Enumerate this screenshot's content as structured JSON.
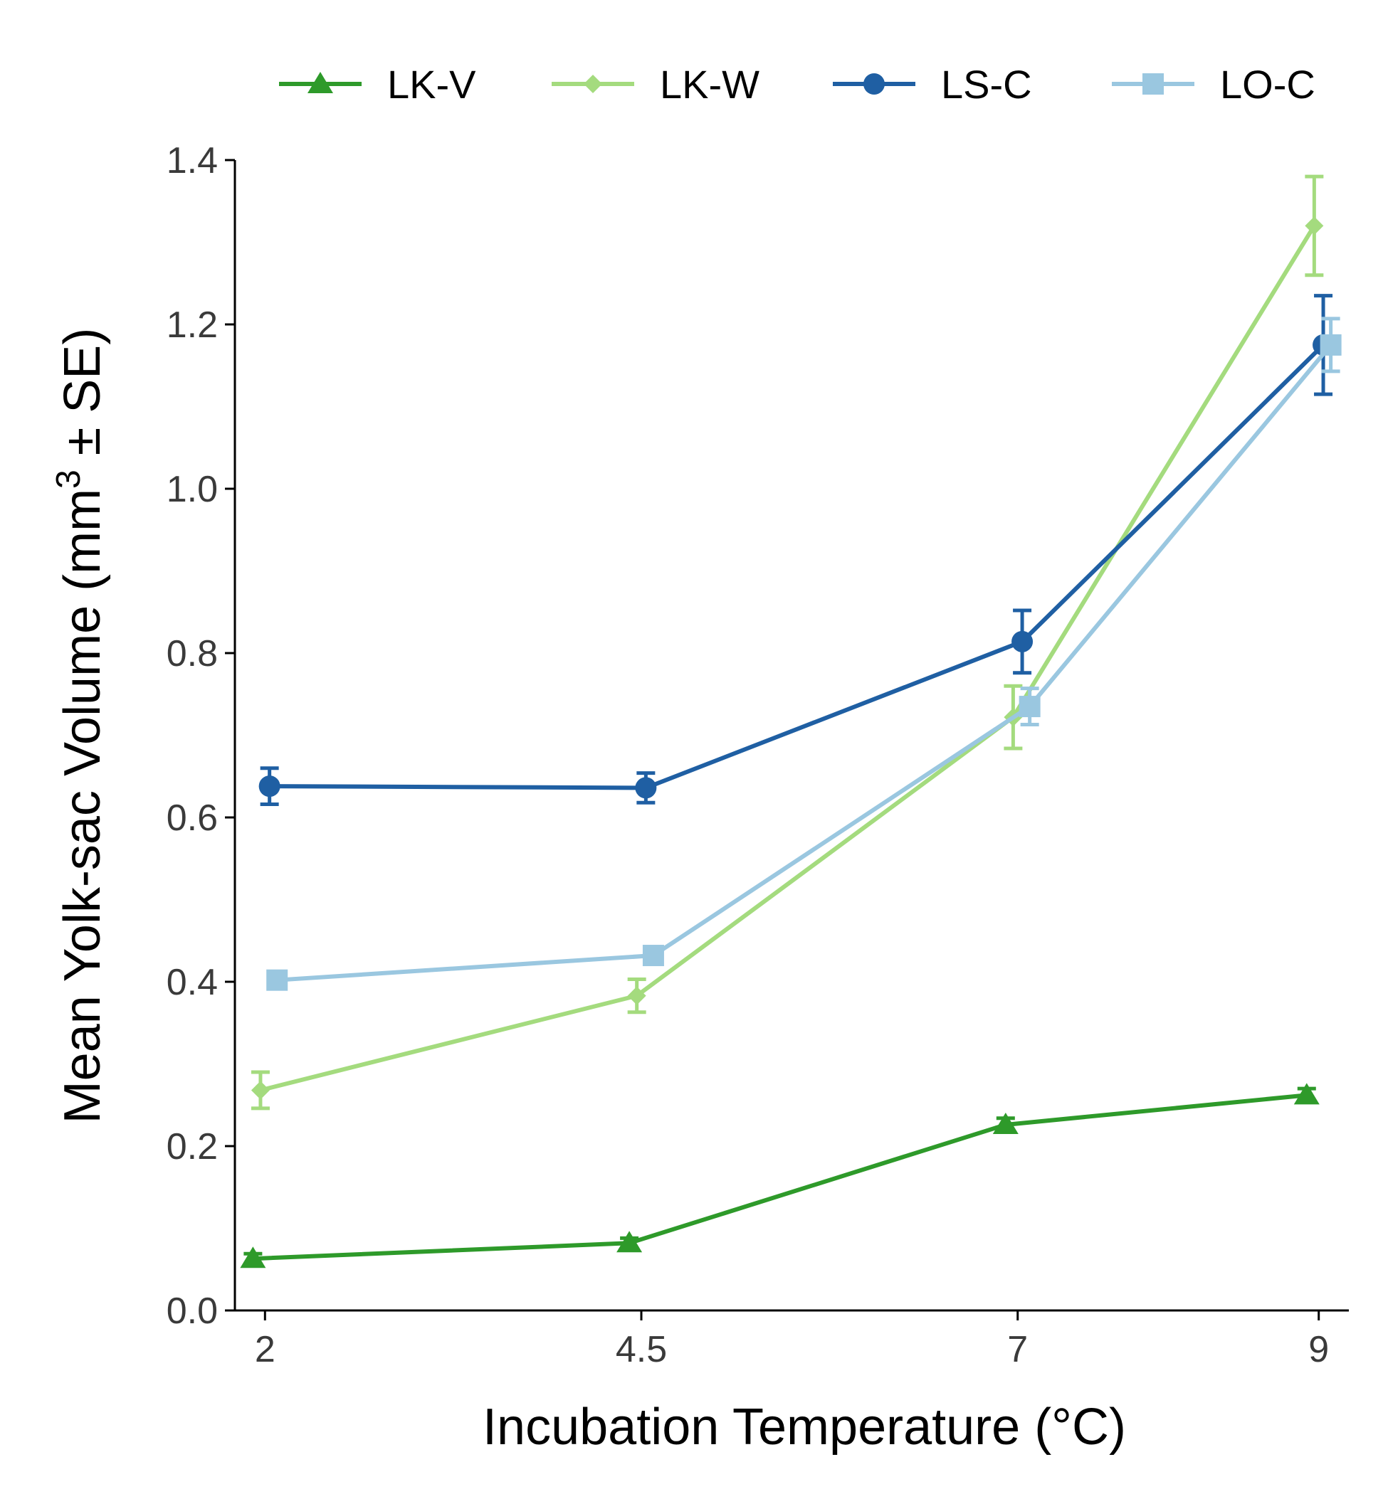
{
  "chart_data": {
    "type": "line",
    "xlabel": "Incubation Temperature (°C)",
    "ylabel": {
      "prefix": "Mean Yolk-sac Volume (mm",
      "superscript": "3",
      "suffix": " ± SE)"
    },
    "x": [
      2,
      4.5,
      7,
      9
    ],
    "x_tick_labels": [
      "2",
      "4.5",
      "7",
      "9"
    ],
    "xlim": [
      1.8,
      9.2
    ],
    "ylim": [
      0,
      1.4
    ],
    "y_ticks": [
      0.0,
      0.2,
      0.4,
      0.6,
      0.8,
      1.0,
      1.2,
      1.4
    ],
    "y_tick_labels": [
      "0.0",
      "0.2",
      "0.4",
      "0.6",
      "0.8",
      "1.0",
      "1.2",
      "1.4"
    ],
    "grid": false,
    "legend_position": "top",
    "series": [
      {
        "name": "LK-V",
        "color": "#2e9a2a",
        "marker": "triangle",
        "x": [
          1.92,
          4.42,
          6.92,
          8.92
        ],
        "values": [
          0.063,
          0.082,
          0.226,
          0.262
        ],
        "se": [
          0.006,
          0.006,
          0.008,
          0.008
        ]
      },
      {
        "name": "LK-W",
        "color": "#a4db7e",
        "marker": "diamond",
        "x": [
          1.97,
          4.47,
          6.97,
          8.97
        ],
        "values": [
          0.268,
          0.383,
          0.722,
          1.32
        ],
        "se": [
          0.022,
          0.02,
          0.038,
          0.06
        ]
      },
      {
        "name": "LS-C",
        "color": "#1f5fa3",
        "marker": "circle",
        "x": [
          2.03,
          4.53,
          7.03,
          9.03
        ],
        "values": [
          0.638,
          0.636,
          0.814,
          1.175
        ],
        "se": [
          0.022,
          0.018,
          0.038,
          0.06
        ]
      },
      {
        "name": "LO-C",
        "color": "#9ac7e0",
        "marker": "square",
        "x": [
          2.08,
          4.58,
          7.08,
          9.08
        ],
        "values": [
          0.402,
          0.432,
          0.735,
          1.175
        ],
        "se": [
          0.01,
          0.008,
          0.022,
          0.032
        ]
      }
    ]
  }
}
